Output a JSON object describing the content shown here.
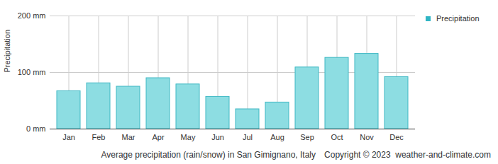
{
  "chart_data": {
    "type": "bar",
    "categories": [
      "Jan",
      "Feb",
      "Mar",
      "Apr",
      "May",
      "Jun",
      "Jul",
      "Aug",
      "Sep",
      "Oct",
      "Nov",
      "Dec"
    ],
    "series": [
      {
        "name": "Precipitation",
        "color": "#8ddde2",
        "values": [
          67,
          81,
          75,
          90,
          79,
          57,
          35,
          47,
          109,
          126,
          133,
          92
        ]
      }
    ],
    "y_label": "Precipitation",
    "ylim": [
      0,
      200
    ],
    "yticks": [
      {
        "value": 0,
        "label": "0 mm"
      },
      {
        "value": 100,
        "label": "100 mm"
      },
      {
        "value": 200,
        "label": "200 mm"
      }
    ],
    "grid": true,
    "legend": "top-right",
    "caption": "Average precipitation (rain/snow) in San Gimignano, Italy",
    "source": "Copyright © 2023  weather-and-climate.com"
  }
}
